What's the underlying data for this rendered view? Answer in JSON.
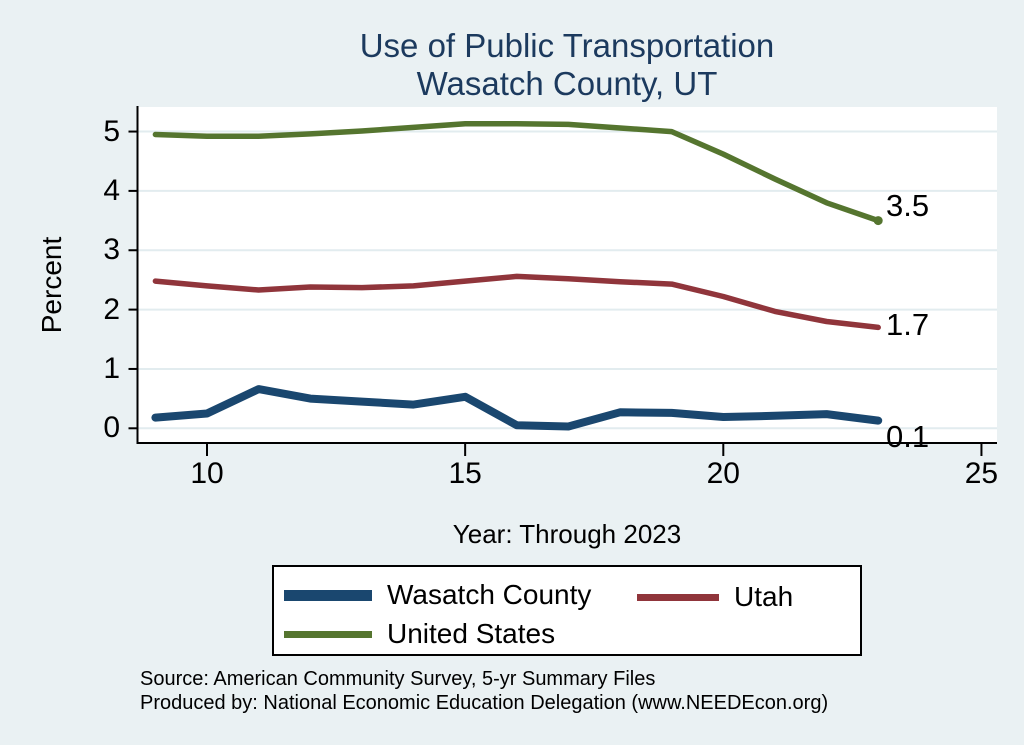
{
  "title": {
    "line1": "Use of Public Transportation",
    "line2": "Wasatch County, UT"
  },
  "caption": "Year: Through 2023",
  "axes": {
    "ylabel": "Percent"
  },
  "legend": {
    "items": [
      {
        "label": "Wasatch County",
        "color": "#1a476f"
      },
      {
        "label": "Utah",
        "color": "#90353b"
      },
      {
        "label": "United States",
        "color": "#55752f"
      }
    ]
  },
  "source": {
    "line1": "Source: American Community Survey, 5-yr Summary Files",
    "line2": "Produced by: National Economic Education Delegation (www.NEEDEcon.org)"
  },
  "colors": {
    "background": "#eaf1f3",
    "plot_background": "#ffffff",
    "gridline": "#e2ecef",
    "axis": "#000000",
    "title_text": "#1c3a5e",
    "wasatch_line": "#1a476f",
    "utah_line": "#90353b",
    "us_line": "#55752f"
  },
  "chart_data": {
    "type": "line",
    "title": "Use of Public Transportation - Wasatch County, UT",
    "xlabel": "Year: Through 2023",
    "ylabel": "Percent",
    "x_years": [
      2009,
      2010,
      2011,
      2012,
      2013,
      2014,
      2015,
      2016,
      2017,
      2018,
      2019,
      2020,
      2021,
      2022,
      2023
    ],
    "x": [
      9,
      10,
      11,
      12,
      13,
      14,
      15,
      16,
      17,
      18,
      19,
      20,
      21,
      22,
      23
    ],
    "series": [
      {
        "name": "Wasatch County",
        "color": "#1a476f",
        "values": [
          0.18,
          0.25,
          0.66,
          0.5,
          0.45,
          0.4,
          0.53,
          0.05,
          0.03,
          0.27,
          0.26,
          0.19,
          0.21,
          0.24,
          0.13
        ],
        "end_label": "0.1",
        "end_marker": false
      },
      {
        "name": "Utah",
        "color": "#90353b",
        "values": [
          2.48,
          2.4,
          2.33,
          2.38,
          2.37,
          2.4,
          2.48,
          2.56,
          2.52,
          2.47,
          2.43,
          2.22,
          1.97,
          1.8,
          1.7
        ],
        "end_label": "1.7",
        "end_marker": false
      },
      {
        "name": "United States",
        "color": "#55752f",
        "values": [
          4.95,
          4.92,
          4.92,
          4.96,
          5.01,
          5.07,
          5.13,
          5.13,
          5.12,
          5.06,
          5.0,
          4.62,
          4.2,
          3.8,
          3.5
        ],
        "end_label": "3.5",
        "end_marker": true
      }
    ],
    "x_ticks": [
      10,
      15,
      20,
      25
    ],
    "y_ticks": [
      0,
      1,
      2,
      3,
      4,
      5
    ],
    "xlim": [
      8.66,
      25.3
    ],
    "ylim": [
      0,
      5.4
    ],
    "grid": "horizontal",
    "legend_position": "bottom"
  }
}
